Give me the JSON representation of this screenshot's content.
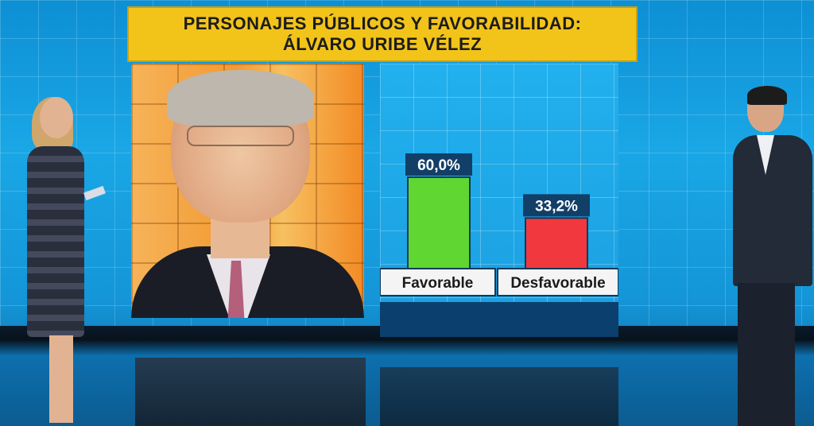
{
  "title": {
    "line1": "PERSONAJES PÚBLICOS Y FAVORABILIDAD:",
    "line2": "ÁLVARO URIBE VÉLEZ"
  },
  "chart_data": {
    "type": "bar",
    "categories": [
      "Favorable",
      "Desfavorable"
    ],
    "values": [
      60.0,
      33.2
    ],
    "value_labels": [
      "60,0%",
      "33,2%"
    ],
    "colors": [
      "#5fd632",
      "#f0383e"
    ],
    "ylim": [
      0,
      100
    ],
    "title": "ÁLVARO URIBE VÉLEZ",
    "xlabel": "",
    "ylabel": "",
    "legend": "none",
    "grid": false
  }
}
